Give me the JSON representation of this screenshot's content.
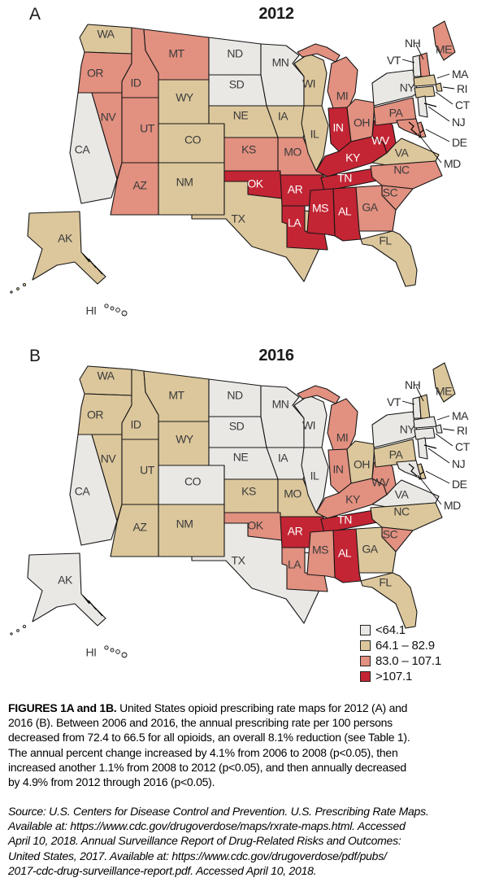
{
  "figure": {
    "panels": [
      {
        "letter": "A",
        "title": "2012"
      },
      {
        "letter": "B",
        "title": "2016"
      }
    ],
    "legend": {
      "items": [
        {
          "label": "<64.1",
          "color": "#eae8e5"
        },
        {
          "label": "64.1 – 82.9",
          "color": "#dcc79c"
        },
        {
          "label": "83.0 – 107.1",
          "color": "#e29080"
        },
        {
          "label": ">107.1",
          "color": "#c32534"
        }
      ]
    },
    "label_color_dark": "#3a3a3a",
    "label_color_light": "#ffffff",
    "states": [
      {
        "abbr": "WA",
        "cat2012": 2,
        "cat2016": 2
      },
      {
        "abbr": "OR",
        "cat2012": 3,
        "cat2016": 2
      },
      {
        "abbr": "CA",
        "cat2012": 1,
        "cat2016": 1
      },
      {
        "abbr": "NV",
        "cat2012": 3,
        "cat2016": 2
      },
      {
        "abbr": "ID",
        "cat2012": 3,
        "cat2016": 2
      },
      {
        "abbr": "MT",
        "cat2012": 3,
        "cat2016": 2
      },
      {
        "abbr": "WY",
        "cat2012": 2,
        "cat2016": 2
      },
      {
        "abbr": "UT",
        "cat2012": 3,
        "cat2016": 2
      },
      {
        "abbr": "CO",
        "cat2012": 2,
        "cat2016": 1
      },
      {
        "abbr": "AZ",
        "cat2012": 3,
        "cat2016": 2
      },
      {
        "abbr": "NM",
        "cat2012": 2,
        "cat2016": 2
      },
      {
        "abbr": "ND",
        "cat2012": 1,
        "cat2016": 1
      },
      {
        "abbr": "SD",
        "cat2012": 1,
        "cat2016": 1
      },
      {
        "abbr": "NE",
        "cat2012": 2,
        "cat2016": 1
      },
      {
        "abbr": "KS",
        "cat2012": 3,
        "cat2016": 2
      },
      {
        "abbr": "OK",
        "cat2012": 4,
        "cat2016": 3
      },
      {
        "abbr": "TX",
        "cat2012": 2,
        "cat2016": 1
      },
      {
        "abbr": "MN",
        "cat2012": 1,
        "cat2016": 1
      },
      {
        "abbr": "IA",
        "cat2012": 2,
        "cat2016": 1
      },
      {
        "abbr": "MO",
        "cat2012": 3,
        "cat2016": 2
      },
      {
        "abbr": "AR",
        "cat2012": 4,
        "cat2016": 4
      },
      {
        "abbr": "LA",
        "cat2012": 4,
        "cat2016": 3
      },
      {
        "abbr": "WI",
        "cat2012": 2,
        "cat2016": 1
      },
      {
        "abbr": "IL",
        "cat2012": 2,
        "cat2016": 1
      },
      {
        "abbr": "MI",
        "cat2012": 3,
        "cat2016": 3
      },
      {
        "abbr": "IN",
        "cat2012": 4,
        "cat2016": 3
      },
      {
        "abbr": "OH",
        "cat2012": 3,
        "cat2016": 2
      },
      {
        "abbr": "KY",
        "cat2012": 4,
        "cat2016": 3
      },
      {
        "abbr": "TN",
        "cat2012": 4,
        "cat2016": 4
      },
      {
        "abbr": "WV",
        "cat2012": 4,
        "cat2016": 3
      },
      {
        "abbr": "VA",
        "cat2012": 2,
        "cat2016": 1
      },
      {
        "abbr": "NC",
        "cat2012": 3,
        "cat2016": 2
      },
      {
        "abbr": "SC",
        "cat2012": 3,
        "cat2016": 3
      },
      {
        "abbr": "GA",
        "cat2012": 3,
        "cat2016": 2
      },
      {
        "abbr": "AL",
        "cat2012": 4,
        "cat2016": 4
      },
      {
        "abbr": "MS",
        "cat2012": 4,
        "cat2016": 3
      },
      {
        "abbr": "FL",
        "cat2012": 2,
        "cat2016": 2
      },
      {
        "abbr": "PA",
        "cat2012": 3,
        "cat2016": 2
      },
      {
        "abbr": "NY",
        "cat2012": 1,
        "cat2016": 1
      },
      {
        "abbr": "ME",
        "cat2012": 3,
        "cat2016": 2
      },
      {
        "abbr": "VT",
        "cat2012": 1,
        "cat2016": 1
      },
      {
        "abbr": "NH",
        "cat2012": 3,
        "cat2016": 2
      },
      {
        "abbr": "MA",
        "cat2012": 2,
        "cat2016": 1
      },
      {
        "abbr": "RI",
        "cat2012": 2,
        "cat2016": 1
      },
      {
        "abbr": "CT",
        "cat2012": 2,
        "cat2016": 1
      },
      {
        "abbr": "NJ",
        "cat2012": 1,
        "cat2016": 1
      },
      {
        "abbr": "DE",
        "cat2012": 3,
        "cat2016": 2
      },
      {
        "abbr": "MD",
        "cat2012": 3,
        "cat2016": 1
      },
      {
        "abbr": "AK",
        "cat2012": 2,
        "cat2016": 1
      },
      {
        "abbr": "HI",
        "cat2012": 1,
        "cat2016": 1
      }
    ]
  },
  "caption": {
    "lead": "FIGURES 1A and 1B.",
    "lines": [
      "United States opioid prescribing rate maps for 2012 (A) and",
      "2016 (B). Between 2006 and 2016, the annual prescribing rate per 100 persons",
      "decreased from 72.4 to 66.5 for all opioids, an overall 8.1% reduction (see Table 1).",
      "The annual percent change increased by 4.1% from 2006 to 2008 (p<0.05), then",
      "increased another 1.1% from 2008 to 2012 (p<0.05), and then annually decreased",
      "by 4.9% from 2012 through 2016 (p<0.05)."
    ]
  },
  "source": {
    "lines": [
      "Source: U.S. Centers for Disease Control and Prevention. U.S. Prescribing Rate Maps.",
      "Available at: https://www.cdc.gov/drugoverdose/maps/rxrate-maps.html. Accessed",
      "April 10, 2018. Annual Surveillance Report of Drug-Related Risks and Outcomes:",
      "United States, 2017. Available at: https://www.cdc.gov/drugoverdose/pdf/pubs/",
      "2017-cdc-drug-surveillance-report.pdf. Accessed April 10, 2018."
    ]
  }
}
